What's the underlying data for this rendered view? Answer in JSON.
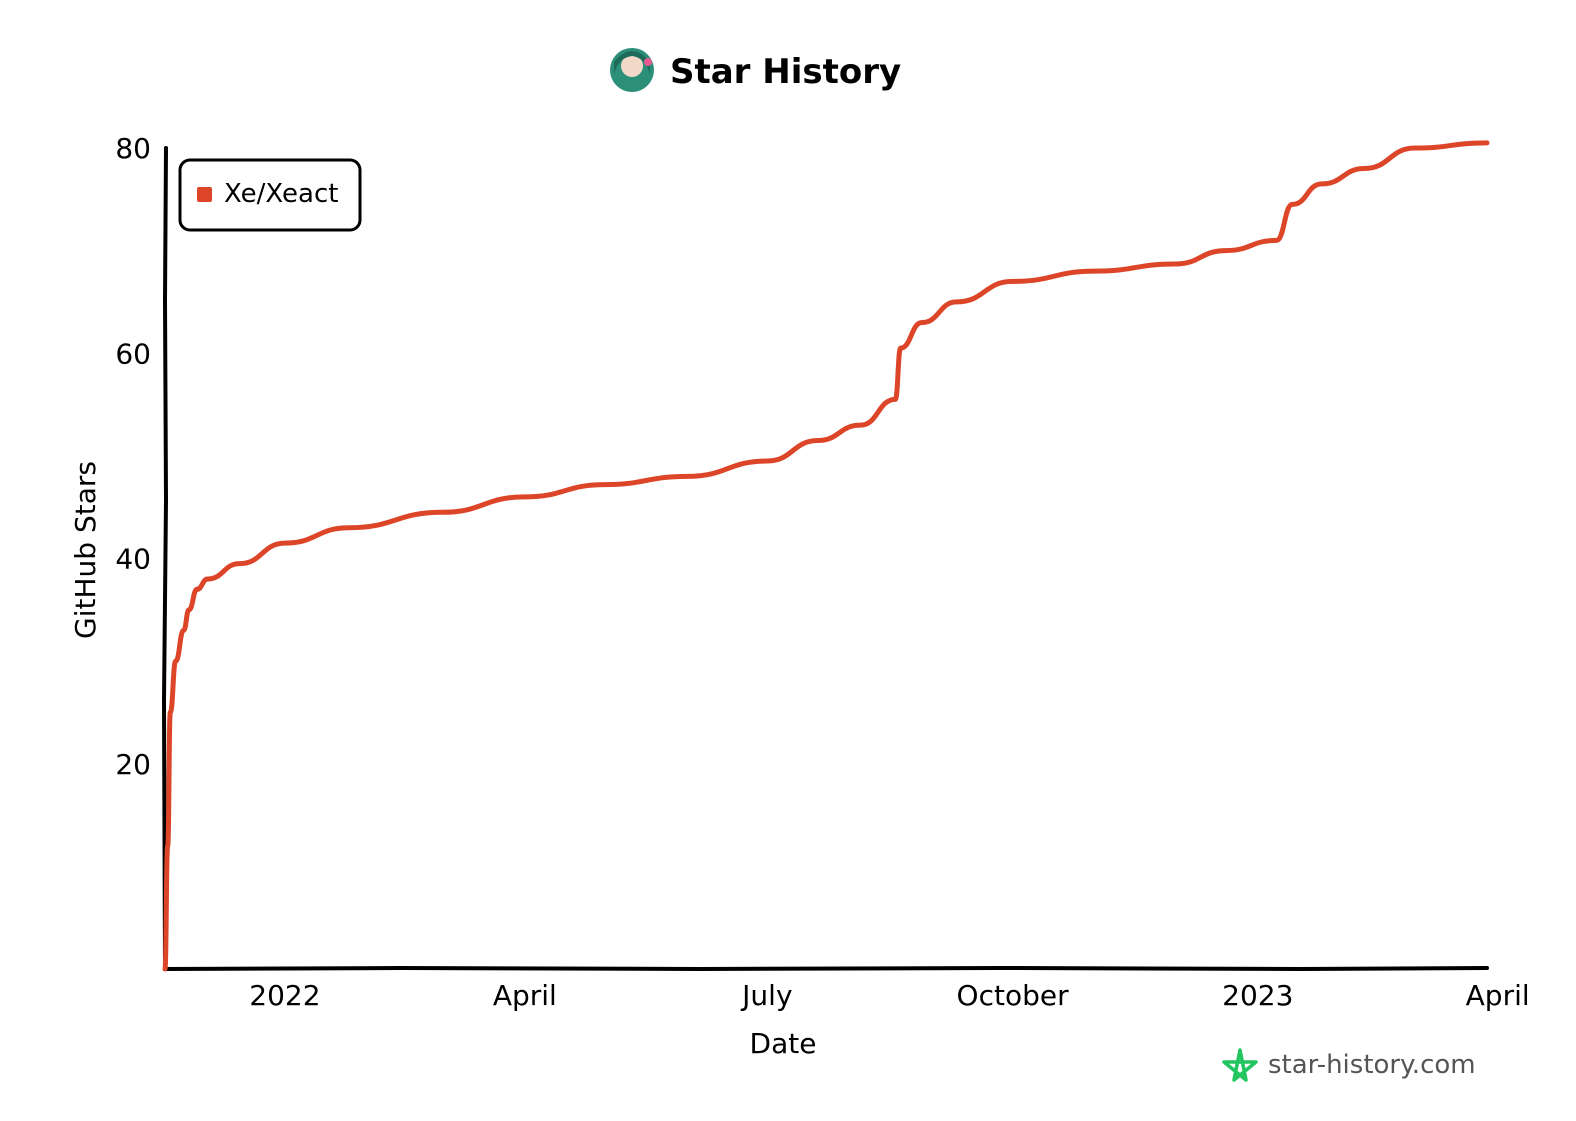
{
  "chart_data": {
    "type": "line",
    "title": "Star History",
    "xlabel": "Date",
    "ylabel": "GitHub Stars",
    "x_ticks": [
      {
        "label": "2022",
        "date": "2022-01-01"
      },
      {
        "label": "April",
        "date": "2022-04-01"
      },
      {
        "label": "July",
        "date": "2022-07-01"
      },
      {
        "label": "October",
        "date": "2022-10-01"
      },
      {
        "label": "2023",
        "date": "2023-01-01"
      },
      {
        "label": "April",
        "date": "2023-04-01"
      }
    ],
    "y_ticks": [
      20,
      40,
      60,
      80
    ],
    "xlim": [
      "2021-11-17",
      "2023-03-28"
    ],
    "ylim": [
      0,
      80
    ],
    "grid": false,
    "legend_position": "top-left",
    "series": [
      {
        "name": "Xe/Xeact",
        "color": "#dd4528",
        "points": [
          {
            "x": "2021-11-17",
            "y": 0
          },
          {
            "x": "2021-11-18",
            "y": 12
          },
          {
            "x": "2021-11-19",
            "y": 25
          },
          {
            "x": "2021-11-21",
            "y": 30
          },
          {
            "x": "2021-11-24",
            "y": 33
          },
          {
            "x": "2021-11-26",
            "y": 35
          },
          {
            "x": "2021-11-29",
            "y": 37
          },
          {
            "x": "2021-12-03",
            "y": 38
          },
          {
            "x": "2021-12-15",
            "y": 39.5
          },
          {
            "x": "2022-01-01",
            "y": 41.5
          },
          {
            "x": "2022-01-25",
            "y": 43
          },
          {
            "x": "2022-03-01",
            "y": 44.5
          },
          {
            "x": "2022-04-01",
            "y": 46
          },
          {
            "x": "2022-05-01",
            "y": 47.2
          },
          {
            "x": "2022-06-01",
            "y": 48
          },
          {
            "x": "2022-07-01",
            "y": 49.5
          },
          {
            "x": "2022-07-20",
            "y": 51.5
          },
          {
            "x": "2022-08-05",
            "y": 53
          },
          {
            "x": "2022-08-18",
            "y": 55.5
          },
          {
            "x": "2022-08-20",
            "y": 60.5
          },
          {
            "x": "2022-08-28",
            "y": 63
          },
          {
            "x": "2022-09-10",
            "y": 65
          },
          {
            "x": "2022-10-01",
            "y": 67
          },
          {
            "x": "2022-11-01",
            "y": 68
          },
          {
            "x": "2022-12-01",
            "y": 68.7
          },
          {
            "x": "2022-12-20",
            "y": 70
          },
          {
            "x": "2023-01-08",
            "y": 71
          },
          {
            "x": "2023-01-14",
            "y": 74.5
          },
          {
            "x": "2023-01-25",
            "y": 76.5
          },
          {
            "x": "2023-02-10",
            "y": 78
          },
          {
            "x": "2023-03-01",
            "y": 80
          },
          {
            "x": "2023-03-28",
            "y": 80.5
          }
        ]
      }
    ],
    "watermark": "star-history.com"
  }
}
